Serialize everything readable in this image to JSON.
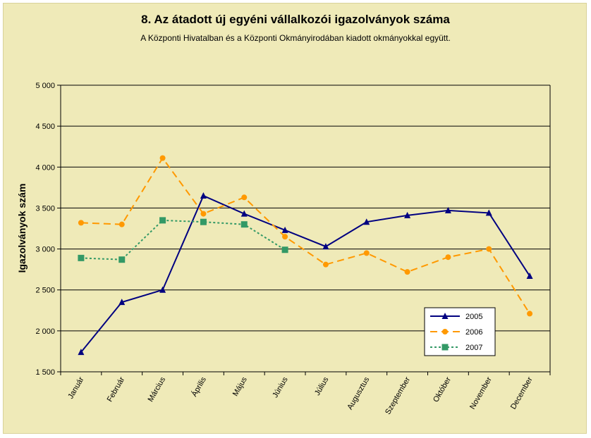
{
  "chart_data": {
    "type": "line",
    "title": "8. Az átadott új egyéni vállalkozói  igazolványok száma",
    "subtitle": "A Központi Hivatalban és a Központi Okmányirodában kiadott okmányokkal együtt.",
    "ylabel": "Igazolványok szám",
    "xlabel": "",
    "ylim": [
      1500,
      5000
    ],
    "ytick_step": 500,
    "ytick_labels": [
      "1 500",
      "2 000",
      "2 500",
      "3 000",
      "3 500",
      "4 000",
      "4 500",
      "5 000"
    ],
    "categories": [
      "Január",
      "Február",
      "Március",
      "Április",
      "Május",
      "Június",
      "Július",
      "Augusztus",
      "Szeptember",
      "Október",
      "November",
      "December"
    ],
    "grid": true,
    "legend_position": "bottom-right",
    "series": [
      {
        "name": "2005",
        "color": "#000080",
        "marker": "triangle",
        "dash": "solid",
        "values": [
          1740,
          2350,
          2500,
          3650,
          3430,
          3230,
          3030,
          3330,
          3410,
          3470,
          3440,
          2670
        ]
      },
      {
        "name": "2006",
        "color": "#ff9900",
        "marker": "circle",
        "dash": "dashed",
        "values": [
          3320,
          3300,
          4110,
          3430,
          3630,
          3150,
          2810,
          2950,
          2720,
          2900,
          3000,
          2210
        ]
      },
      {
        "name": "2007",
        "color": "#339966",
        "marker": "square",
        "dash": "dotted",
        "values": [
          2890,
          2870,
          3350,
          3330,
          3300,
          2990,
          null,
          null,
          null,
          null,
          null,
          null
        ]
      }
    ]
  }
}
